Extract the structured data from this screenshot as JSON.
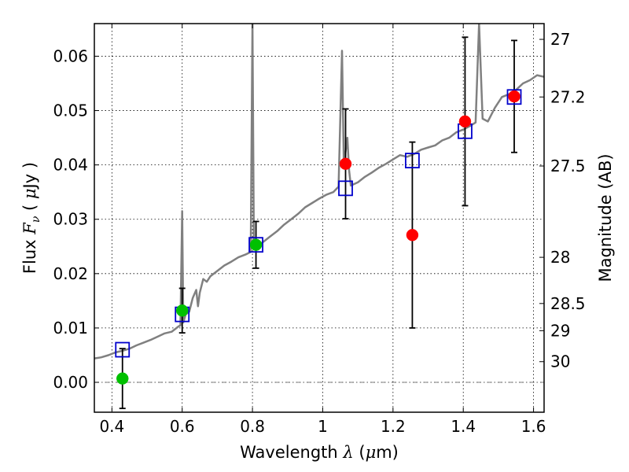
{
  "chart_data": {
    "type": "scatter",
    "title": "",
    "xlabel": "Wavelength  λ (μm)",
    "xlabel_parts": [
      "Wavelength  ",
      "λ",
      " (",
      "μ",
      "m)"
    ],
    "ylabel": "Flux  Fν  ( μJy )",
    "ylabel_parts": [
      "Flux  ",
      "F",
      "ν",
      "  ( ",
      "μ",
      "Jy )"
    ],
    "ylabel_right": "Magnitude (AB)",
    "xlim": [
      0.35,
      1.63
    ],
    "ylim": [
      -0.0055,
      0.066
    ],
    "x_ticks": [
      0.4,
      0.6,
      0.8,
      1.0,
      1.2,
      1.4,
      1.6
    ],
    "x_tick_labels": [
      "0.4",
      "0.6",
      "0.8",
      "1",
      "1.2",
      "1.4",
      "1.6"
    ],
    "y_ticks": [
      0.0,
      0.01,
      0.02,
      0.03,
      0.04,
      0.05,
      0.06
    ],
    "y_tick_labels": [
      "0.00",
      "0.01",
      "0.02",
      "0.03",
      "0.04",
      "0.05",
      "0.06"
    ],
    "right_ticks": [
      {
        "label": "27",
        "flux": 0.0631
      },
      {
        "label": "27.2",
        "flux": 0.0525
      },
      {
        "label": "27.5",
        "flux": 0.0398
      },
      {
        "label": "28",
        "flux": 0.023
      },
      {
        "label": "28.5",
        "flux": 0.0145
      },
      {
        "label": "29",
        "flux": 0.0095
      },
      {
        "label": "30",
        "flux": 0.0038
      }
    ],
    "grid": true,
    "zero_line": true,
    "colors": {
      "spectrum": "#808080",
      "model_box": "#0000cc",
      "observed_red": "#ff0000",
      "observed_green": "#00c000",
      "errorbar": "#000000"
    },
    "series": [
      {
        "kind": "spectrum",
        "points": [
          [
            0.35,
            0.0044
          ],
          [
            0.37,
            0.0046
          ],
          [
            0.39,
            0.005
          ],
          [
            0.41,
            0.0055
          ],
          [
            0.43,
            0.0058
          ],
          [
            0.45,
            0.0062
          ],
          [
            0.47,
            0.0068
          ],
          [
            0.49,
            0.0073
          ],
          [
            0.51,
            0.0078
          ],
          [
            0.53,
            0.0084
          ],
          [
            0.55,
            0.009
          ],
          [
            0.57,
            0.0093
          ],
          [
            0.59,
            0.0103
          ],
          [
            0.595,
            0.0105
          ],
          [
            0.6,
            0.0315
          ],
          [
            0.603,
            0.011
          ],
          [
            0.61,
            0.0125
          ],
          [
            0.62,
            0.013
          ],
          [
            0.63,
            0.0155
          ],
          [
            0.64,
            0.017
          ],
          [
            0.645,
            0.014
          ],
          [
            0.65,
            0.0165
          ],
          [
            0.66,
            0.019
          ],
          [
            0.67,
            0.0185
          ],
          [
            0.68,
            0.0195
          ],
          [
            0.7,
            0.0205
          ],
          [
            0.72,
            0.0215
          ],
          [
            0.74,
            0.0222
          ],
          [
            0.76,
            0.023
          ],
          [
            0.78,
            0.0235
          ],
          [
            0.795,
            0.024
          ],
          [
            0.8,
            0.066
          ],
          [
            0.804,
            0.0248
          ],
          [
            0.81,
            0.025
          ],
          [
            0.83,
            0.0258
          ],
          [
            0.85,
            0.0268
          ],
          [
            0.87,
            0.0278
          ],
          [
            0.89,
            0.029
          ],
          [
            0.91,
            0.03
          ],
          [
            0.93,
            0.031
          ],
          [
            0.95,
            0.0322
          ],
          [
            0.97,
            0.033
          ],
          [
            0.99,
            0.0338
          ],
          [
            1.01,
            0.0345
          ],
          [
            1.03,
            0.035
          ],
          [
            1.045,
            0.036
          ],
          [
            1.055,
            0.061
          ],
          [
            1.06,
            0.04
          ],
          [
            1.07,
            0.045
          ],
          [
            1.075,
            0.039
          ],
          [
            1.08,
            0.0362
          ],
          [
            1.1,
            0.0368
          ],
          [
            1.12,
            0.0378
          ],
          [
            1.14,
            0.0386
          ],
          [
            1.16,
            0.0395
          ],
          [
            1.18,
            0.0402
          ],
          [
            1.2,
            0.041
          ],
          [
            1.22,
            0.0418
          ],
          [
            1.24,
            0.0415
          ],
          [
            1.26,
            0.042
          ],
          [
            1.28,
            0.0428
          ],
          [
            1.3,
            0.0432
          ],
          [
            1.32,
            0.0436
          ],
          [
            1.34,
            0.0445
          ],
          [
            1.36,
            0.045
          ],
          [
            1.38,
            0.046
          ],
          [
            1.4,
            0.0465
          ],
          [
            1.42,
            0.0472
          ],
          [
            1.435,
            0.0478
          ],
          [
            1.445,
            0.066
          ],
          [
            1.455,
            0.0485
          ],
          [
            1.47,
            0.048
          ],
          [
            1.49,
            0.0505
          ],
          [
            1.51,
            0.0525
          ],
          [
            1.53,
            0.053
          ],
          [
            1.55,
            0.0538
          ],
          [
            1.57,
            0.055
          ],
          [
            1.59,
            0.0556
          ],
          [
            1.61,
            0.0565
          ],
          [
            1.63,
            0.0562
          ]
        ]
      },
      {
        "kind": "model_boxes",
        "points": [
          [
            0.43,
            0.006
          ],
          [
            0.6,
            0.0125
          ],
          [
            0.81,
            0.0253
          ],
          [
            1.065,
            0.0357
          ],
          [
            1.255,
            0.0408
          ],
          [
            1.405,
            0.0462
          ],
          [
            1.545,
            0.0525
          ]
        ]
      },
      {
        "kind": "observed",
        "points": [
          {
            "x": 0.43,
            "y": 0.0007,
            "yerr": 0.0055,
            "color": "green"
          },
          {
            "x": 0.6,
            "y": 0.0132,
            "yerr": 0.0041,
            "color": "green"
          },
          {
            "x": 0.81,
            "y": 0.0253,
            "yerr": 0.0043,
            "color": "green"
          },
          {
            "x": 1.065,
            "y": 0.0402,
            "yerr": 0.0101,
            "color": "red"
          },
          {
            "x": 1.255,
            "y": 0.0271,
            "yerr": 0.0171,
            "color": "red"
          },
          {
            "x": 1.405,
            "y": 0.048,
            "yerr": 0.0155,
            "color": "red"
          },
          {
            "x": 1.545,
            "y": 0.0526,
            "yerr": 0.0103,
            "color": "red"
          }
        ]
      }
    ]
  }
}
